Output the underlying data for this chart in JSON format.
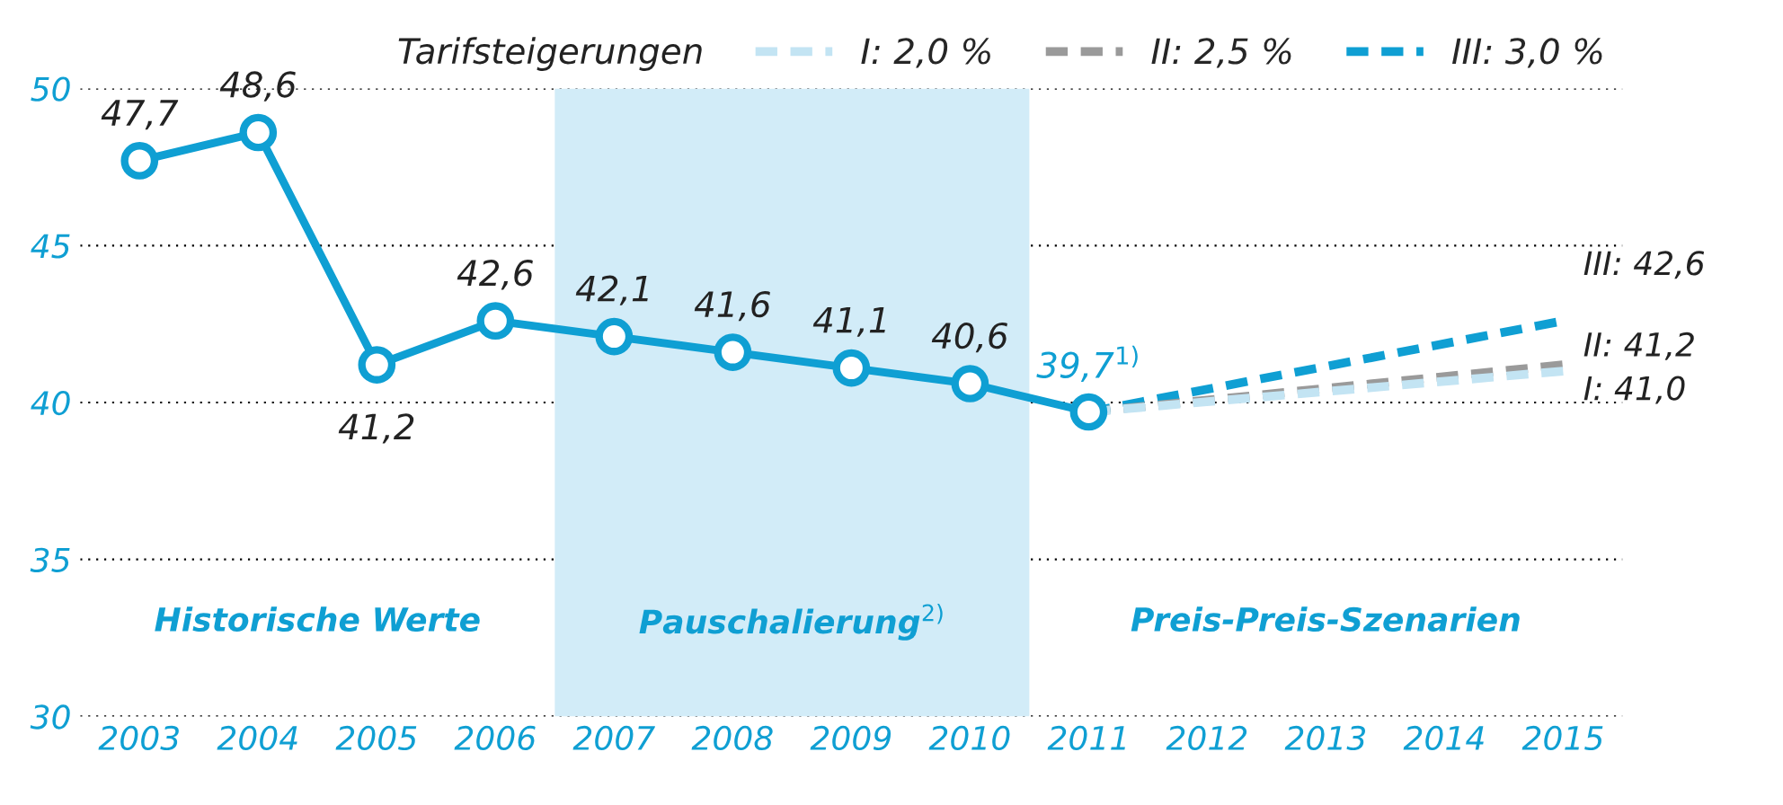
{
  "chart_data": {
    "type": "line",
    "categories": [
      "2003",
      "2004",
      "2005",
      "2006",
      "2007",
      "2008",
      "2009",
      "2010",
      "2011",
      "2012",
      "2013",
      "2014",
      "2015"
    ],
    "series": [
      {
        "color": "#0f9fd3",
        "marker": "circle",
        "line_style": "solid",
        "values": [
          47.7,
          48.6,
          41.2,
          42.6,
          42.1,
          41.6,
          41.1,
          40.6,
          39.7,
          null,
          null,
          null,
          null
        ],
        "value_labels": [
          "47,7",
          "48,6",
          "41,2",
          "42,6",
          "42,1",
          "41,6",
          "41,1",
          "40,6",
          "39,7$^{1)}$",
          null,
          null,
          null,
          null
        ]
      },
      {
        "name": "I: 2,0 %",
        "color": "#c3e4f3",
        "line_style": "dashed",
        "values": [
          null,
          null,
          null,
          null,
          null,
          null,
          null,
          null,
          39.7,
          null,
          null,
          null,
          41.0
        ],
        "value_labels": [
          null,
          null,
          null,
          null,
          null,
          null,
          null,
          null,
          null,
          null,
          null,
          null,
          "I: 41,0"
        ]
      },
      {
        "name": "II: 2,5 %",
        "color": "#9a9a9a",
        "line_style": "dashed",
        "values": [
          null,
          null,
          null,
          null,
          null,
          null,
          null,
          null,
          39.7,
          null,
          null,
          null,
          41.2
        ],
        "value_labels": [
          null,
          null,
          null,
          null,
          null,
          null,
          null,
          null,
          null,
          null,
          null,
          null,
          "II: 41,2"
        ]
      },
      {
        "name": "III: 3,0 %",
        "color": "#0f9fd3",
        "line_style": "dashed",
        "values": [
          null,
          null,
          null,
          null,
          null,
          null,
          null,
          null,
          39.7,
          null,
          null,
          null,
          42.6
        ],
        "value_labels": [
          null,
          null,
          null,
          null,
          null,
          null,
          null,
          null,
          null,
          null,
          null,
          null,
          "III: 42,6"
        ]
      }
    ],
    "legend_title": "Tarifsteigerungen",
    "legend": "top right",
    "ylim": [
      30,
      50
    ],
    "yticks": [
      30,
      35,
      40,
      45,
      50
    ],
    "grid": "y",
    "bands": [
      {
        "axis": "x",
        "from": "2007",
        "to": "2010",
        "color": "#d2ecf8",
        "label": "Pauschalierung$^{2)}$"
      }
    ],
    "annotations": [
      "Historische Werte",
      "Preis-Preis-Szenarien"
    ]
  }
}
